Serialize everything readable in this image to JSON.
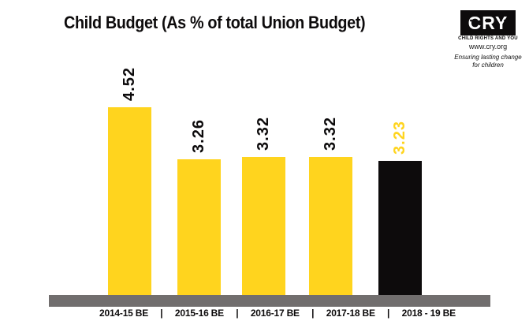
{
  "title": "Child Budget (As % of total Union Budget)",
  "logo": {
    "brand": "CRY",
    "name": "CHILD RIGHTS AND YOU",
    "website": "www.cry.org",
    "slogan_line1": "Ensuring lasting change",
    "slogan_line2": "for children"
  },
  "colors": {
    "yellow": "#ffd41e",
    "black": "#0d0b0c",
    "axis_gray": "#716e6e"
  },
  "chart_data": {
    "type": "bar",
    "title": "Child Budget (As % of total Union Budget)",
    "categories": [
      "2014-15 BE",
      "2015-16 BE",
      "2016-17 BE",
      "2017-18 BE",
      "2018 - 19 BE"
    ],
    "values": [
      4.52,
      3.26,
      3.32,
      3.32,
      3.23
    ],
    "value_labels": [
      "4.52",
      "3.26",
      "3.32",
      "3.32",
      "3.23"
    ],
    "bar_colors": [
      "#ffd41e",
      "#ffd41e",
      "#ffd41e",
      "#ffd41e",
      "#0d0b0c"
    ],
    "value_label_colors": [
      "#0d0b0c",
      "#0d0b0c",
      "#0d0b0c",
      "#0d0b0c",
      "#ffd41e"
    ],
    "value_label_rotation_deg": -90,
    "category_separator": "|",
    "xlabel": "",
    "ylabel": "",
    "ylim": [
      0,
      5
    ],
    "grid": false,
    "legend": false,
    "baseline_color": "#716e6e"
  }
}
